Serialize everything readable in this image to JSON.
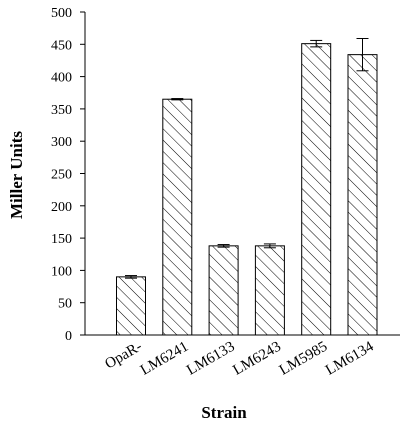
{
  "chart_data": {
    "type": "bar",
    "title": "",
    "xlabel": "Strain",
    "ylabel": "Miller Units",
    "categories": [
      "OpaR-",
      "LM6241",
      "LM6133",
      "LM6243",
      "LM5985",
      "LM6134"
    ],
    "values": [
      90,
      365,
      138,
      138,
      451,
      434
    ],
    "error": [
      2,
      1,
      2,
      3,
      5,
      25
    ],
    "ylim": [
      0,
      500
    ],
    "yticks": [
      0,
      50,
      100,
      150,
      200,
      250,
      300,
      350,
      400,
      450,
      500
    ],
    "grid": false,
    "legend": "none",
    "bar_fill": "diagonal-hatch",
    "colors": {
      "stroke": "#000000",
      "background": "#ffffff"
    }
  }
}
